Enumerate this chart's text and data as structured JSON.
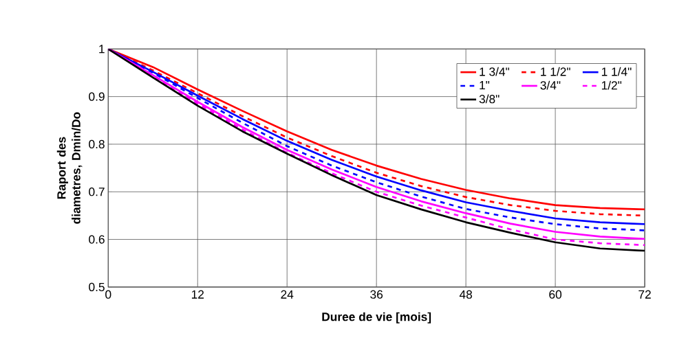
{
  "chart_data": {
    "type": "line",
    "xlabel": "Duree de vie [mois]",
    "ylabel": "Raport des diametres, Dmin/Do",
    "x": [
      0,
      6,
      12,
      18,
      24,
      30,
      36,
      42,
      48,
      54,
      60,
      66,
      72
    ],
    "series": [
      {
        "name": "1 3/4\"",
        "color": "#ff0000",
        "line_style": "solid",
        "values": [
          1,
          0.962,
          0.915,
          0.87,
          0.827,
          0.788,
          0.755,
          0.727,
          0.704,
          0.686,
          0.672,
          0.666,
          0.663
        ]
      },
      {
        "name": "1 1/2\"",
        "color": "#ff0000",
        "line_style": "dashed",
        "values": [
          1,
          0.955,
          0.907,
          0.859,
          0.814,
          0.775,
          0.74,
          0.712,
          0.689,
          0.672,
          0.66,
          0.653,
          0.65
        ]
      },
      {
        "name": "1 1/4\"",
        "color": "#0000ff",
        "line_style": "solid",
        "values": [
          1,
          0.952,
          0.902,
          0.853,
          0.807,
          0.767,
          0.732,
          0.703,
          0.678,
          0.66,
          0.644,
          0.636,
          0.632
        ]
      },
      {
        "name": "1\"",
        "color": "#0000ff",
        "line_style": "dashed",
        "values": [
          1,
          0.95,
          0.897,
          0.845,
          0.796,
          0.755,
          0.72,
          0.69,
          0.664,
          0.646,
          0.632,
          0.623,
          0.619
        ]
      },
      {
        "name": "3/4\"",
        "color": "#ff00ff",
        "line_style": "solid",
        "values": [
          1,
          0.945,
          0.889,
          0.836,
          0.788,
          0.747,
          0.71,
          0.68,
          0.655,
          0.633,
          0.616,
          0.606,
          0.601
        ]
      },
      {
        "name": "1/2\"",
        "color": "#ff00ff",
        "line_style": "dashed",
        "values": [
          1,
          0.943,
          0.885,
          0.831,
          0.782,
          0.739,
          0.7,
          0.671,
          0.646,
          0.621,
          0.6,
          0.592,
          0.588
        ]
      },
      {
        "name": "3/8\"",
        "color": "#000000",
        "line_style": "solid",
        "values": [
          1,
          0.94,
          0.881,
          0.827,
          0.78,
          0.735,
          0.693,
          0.663,
          0.636,
          0.614,
          0.594,
          0.581,
          0.576
        ]
      }
    ],
    "xlim": [
      0,
      72
    ],
    "xticks": [
      0,
      12,
      24,
      36,
      48,
      60,
      72
    ],
    "ylim": [
      0.5,
      1
    ],
    "yticks": [
      0.5,
      0.6,
      0.7,
      0.8,
      0.9,
      1
    ],
    "grid": true,
    "legend": "top right",
    "marker": "none"
  }
}
